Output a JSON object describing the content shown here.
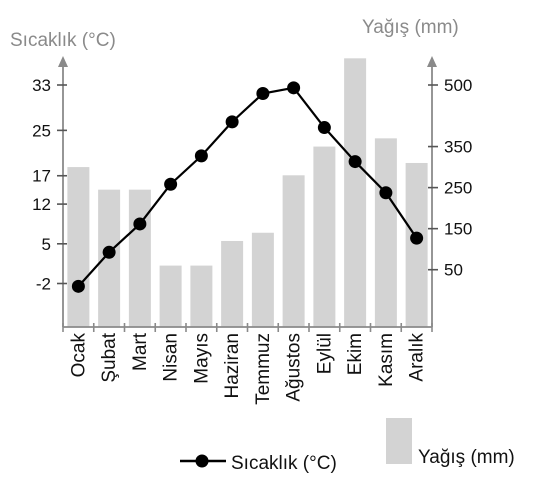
{
  "chart_data": {
    "type": "bar+line",
    "categories": [
      "Ocak",
      "Şubat",
      "Mart",
      "Nisan",
      "Mayıs",
      "Haziran",
      "Temmuz",
      "Ağustos",
      "Eylül",
      "Ekim",
      "Kasım",
      "Aralık"
    ],
    "left_axis": {
      "title": "Sıcaklık (°C)",
      "ticks": [
        -2,
        5,
        12,
        17,
        25,
        33
      ]
    },
    "right_axis": {
      "title": "Yağış (mm)",
      "ticks": [
        50,
        150,
        250,
        350,
        500
      ]
    },
    "series": [
      {
        "name": "Yağış (mm)",
        "type": "bar",
        "axis": "right",
        "color": "#d3d3d3",
        "values": [
          300,
          245,
          245,
          60,
          60,
          120,
          140,
          280,
          350,
          565,
          370,
          310
        ]
      },
      {
        "name": "Sıcaklık (°C)",
        "type": "line",
        "axis": "left",
        "color": "#000000",
        "values": [
          -2.5,
          3.5,
          8.5,
          15.5,
          20.5,
          26.5,
          31.5,
          32.5,
          25.5,
          19.5,
          14,
          6
        ]
      }
    ],
    "legend": {
      "line_label": "Sıcaklık (°C)",
      "bar_label": "Yağış (mm)",
      "position": "bottom"
    }
  }
}
